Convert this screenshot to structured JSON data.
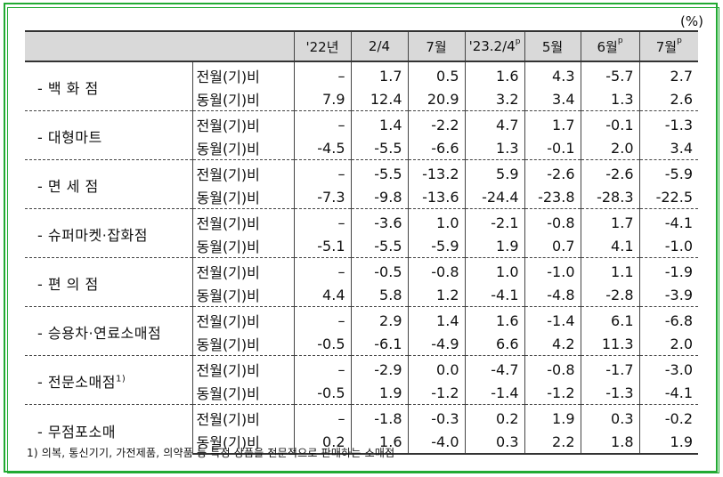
{
  "unit": "(%)",
  "columns": [
    "'22년",
    "2/4",
    "7월",
    "'23.2/4",
    "5월",
    "6월",
    "7월"
  ],
  "column_superscripts": [
    "",
    "",
    "",
    "p",
    "",
    "p",
    "p"
  ],
  "indicator_labels": [
    "전월(기)비",
    "동월(기)비"
  ],
  "rows": [
    {
      "category": "- 백 화 점",
      "sup": "",
      "mom": [
        "–",
        "1.7",
        "0.5",
        "1.6",
        "4.3",
        "-5.7",
        "2.7"
      ],
      "yoy": [
        "7.9",
        "12.4",
        "20.9",
        "3.2",
        "3.4",
        "1.3",
        "2.6"
      ]
    },
    {
      "category": "- 대형마트",
      "sup": "",
      "mom": [
        "–",
        "1.4",
        "-2.2",
        "4.7",
        "1.7",
        "-0.1",
        "-1.3"
      ],
      "yoy": [
        "-4.5",
        "-5.5",
        "-6.6",
        "1.3",
        "-0.1",
        "2.0",
        "3.4"
      ]
    },
    {
      "category": "- 면 세 점",
      "sup": "",
      "mom": [
        "–",
        "-5.5",
        "-13.2",
        "5.9",
        "-2.6",
        "-2.6",
        "-5.9"
      ],
      "yoy": [
        "-7.3",
        "-9.8",
        "-13.6",
        "-24.4",
        "-23.8",
        "-28.3",
        "-22.5"
      ]
    },
    {
      "category": "- 슈퍼마켓·잡화점",
      "sup": "",
      "mom": [
        "–",
        "-3.6",
        "1.0",
        "-2.1",
        "-0.8",
        "1.7",
        "-4.1"
      ],
      "yoy": [
        "-5.1",
        "-5.5",
        "-5.9",
        "1.9",
        "0.7",
        "4.1",
        "-1.0"
      ]
    },
    {
      "category": "- 편 의 점",
      "sup": "",
      "mom": [
        "–",
        "-0.5",
        "-0.8",
        "1.0",
        "-1.0",
        "1.1",
        "-1.9"
      ],
      "yoy": [
        "4.4",
        "5.8",
        "1.2",
        "-4.1",
        "-4.8",
        "-2.8",
        "-3.9"
      ]
    },
    {
      "category": "- 승용차·연료소매점",
      "sup": "",
      "mom": [
        "–",
        "2.9",
        "1.4",
        "1.6",
        "-1.4",
        "6.1",
        "-6.8"
      ],
      "yoy": [
        "-0.5",
        "-6.1",
        "-4.9",
        "6.6",
        "4.2",
        "11.3",
        "2.0"
      ]
    },
    {
      "category": "- 전문소매점",
      "sup": "1)",
      "mom": [
        "–",
        "-2.9",
        "0.0",
        "-4.7",
        "-0.8",
        "-1.7",
        "-3.0"
      ],
      "yoy": [
        "-0.5",
        "1.9",
        "-1.2",
        "-1.4",
        "-1.2",
        "-1.3",
        "-4.1"
      ]
    },
    {
      "category": "- 무점포소매",
      "sup": "",
      "mom": [
        "–",
        "-1.8",
        "-0.3",
        "0.2",
        "1.9",
        "0.3",
        "-0.2"
      ],
      "yoy": [
        "0.2",
        "1.6",
        "-4.0",
        "0.3",
        "2.2",
        "1.8",
        "1.9"
      ]
    }
  ],
  "footnote": "1) 의복, 통신기기, 가전제품, 의약품 등 특정 상품을 전문적으로 판매하는 소매점",
  "colors": {
    "frame": "#22aa33",
    "header_bg": "#d9d9d9"
  }
}
